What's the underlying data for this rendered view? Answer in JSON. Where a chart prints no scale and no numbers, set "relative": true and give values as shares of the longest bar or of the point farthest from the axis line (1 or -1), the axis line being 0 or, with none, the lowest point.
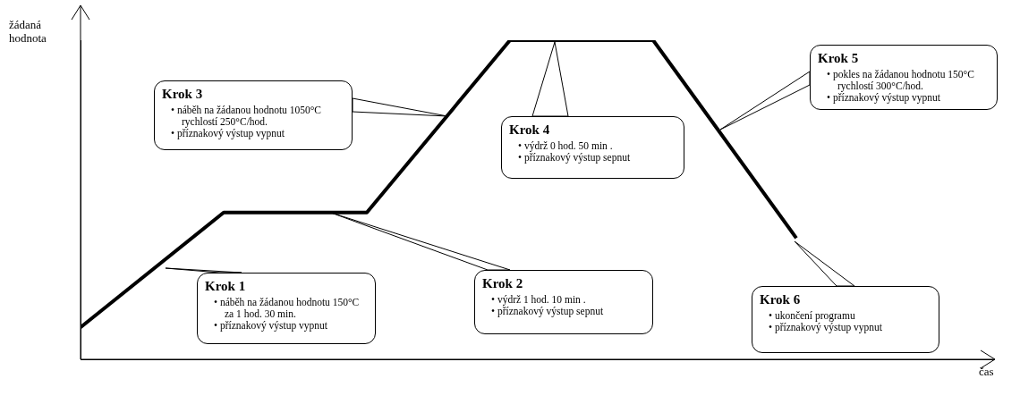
{
  "chart_data": {
    "type": "line",
    "relative": true,
    "ylabel": "žádaná hodnota",
    "categories": [
      null,
      null,
      null,
      null,
      null,
      null
    ],
    "values": [
      0.1,
      0.46,
      0.46,
      1,
      1,
      0.38
    ],
    "color": "#000000",
    "marker": "none",
    "line_style": "solid",
    "legend": false,
    "tick_labels": false,
    "annotations": [
      "Krok 1\n• náběh na žádanou hodnotu 150°C za 1 hod. 30 min.\n• příznakový výstup vypnut",
      "Krok 2\n• výdrž 1 hod. 10 min .\n• příznakový výstup sepnut",
      "Krok 3\n• náběh na žádanou hodnotu 1050°C rychlostí 250°C/hod.\n• příznakový výstup vypnut",
      "Krok 4\n• výdrž 0 hod. 50 min .\n• příznakový výstup sepnut",
      "Krok 5\n• pokles na žádanou hodnotu 150°C rychlostí 300°C/hod.\n• příznakový výstup vypnut",
      "Krok 6\n• ukončení programu\n• příznakový výstup vypnut",
      "čas"
    ]
  }
}
